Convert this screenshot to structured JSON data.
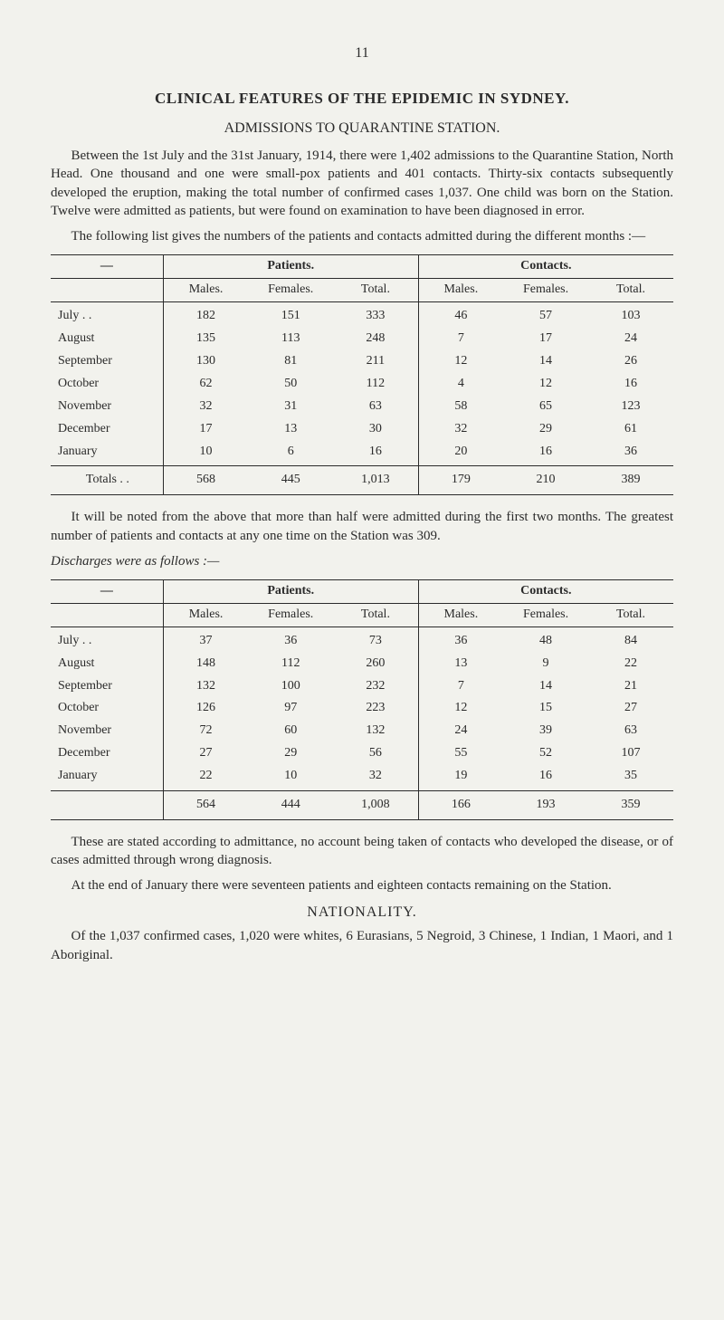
{
  "page_number": "11",
  "title": "CLINICAL FEATURES OF THE EPIDEMIC IN SYDNEY.",
  "subtitle": "ADMISSIONS TO QUARANTINE STATION.",
  "intro_para_1": "Between the 1st July and the 31st January, 1914, there were 1,402 admissions to the Quarantine Station, North Head. One thousand and one were small-pox patients and 401 contacts. Thirty-six contacts subsequently developed the eruption, making the total number of confirmed cases 1,037. One child was born on the Station. Twelve were admitted as patients, but were found on examination to have been diagnosed in error.",
  "intro_para_2": "The following list gives the numbers of the patients and contacts admitted during the different months :—",
  "group_patients": "Patients.",
  "group_contacts": "Contacts.",
  "col_males": "Males.",
  "col_females": "Females.",
  "col_total": "Total.",
  "stub_dash": "—",
  "admissions": {
    "rows": [
      {
        "month": "July . .",
        "pm": "182",
        "pf": "151",
        "pt": "333",
        "cm": "46",
        "cf": "57",
        "ct": "103"
      },
      {
        "month": "August",
        "pm": "135",
        "pf": "113",
        "pt": "248",
        "cm": "7",
        "cf": "17",
        "ct": "24"
      },
      {
        "month": "September",
        "pm": "130",
        "pf": "81",
        "pt": "211",
        "cm": "12",
        "cf": "14",
        "ct": "26"
      },
      {
        "month": "October",
        "pm": "62",
        "pf": "50",
        "pt": "112",
        "cm": "4",
        "cf": "12",
        "ct": "16"
      },
      {
        "month": "November",
        "pm": "32",
        "pf": "31",
        "pt": "63",
        "cm": "58",
        "cf": "65",
        "ct": "123"
      },
      {
        "month": "December",
        "pm": "17",
        "pf": "13",
        "pt": "30",
        "cm": "32",
        "cf": "29",
        "ct": "61"
      },
      {
        "month": "January",
        "pm": "10",
        "pf": "6",
        "pt": "16",
        "cm": "20",
        "cf": "16",
        "ct": "36"
      }
    ],
    "totals_label": "Totals . .",
    "totals": {
      "pm": "568",
      "pf": "445",
      "pt": "1,013",
      "cm": "179",
      "cf": "210",
      "ct": "389"
    }
  },
  "mid_para_1": "It will be noted from the above that more than half were admitted during the first two months. The greatest number of patients and contacts at any one time on the Station was 309.",
  "discharges_caption": "Discharges were as follows :—",
  "discharges": {
    "rows": [
      {
        "month": "July . .",
        "pm": "37",
        "pf": "36",
        "pt": "73",
        "cm": "36",
        "cf": "48",
        "ct": "84"
      },
      {
        "month": "August",
        "pm": "148",
        "pf": "112",
        "pt": "260",
        "cm": "13",
        "cf": "9",
        "ct": "22"
      },
      {
        "month": "September",
        "pm": "132",
        "pf": "100",
        "pt": "232",
        "cm": "7",
        "cf": "14",
        "ct": "21"
      },
      {
        "month": "October",
        "pm": "126",
        "pf": "97",
        "pt": "223",
        "cm": "12",
        "cf": "15",
        "ct": "27"
      },
      {
        "month": "November",
        "pm": "72",
        "pf": "60",
        "pt": "132",
        "cm": "24",
        "cf": "39",
        "ct": "63"
      },
      {
        "month": "December",
        "pm": "27",
        "pf": "29",
        "pt": "56",
        "cm": "55",
        "cf": "52",
        "ct": "107"
      },
      {
        "month": "January",
        "pm": "22",
        "pf": "10",
        "pt": "32",
        "cm": "19",
        "cf": "16",
        "ct": "35"
      }
    ],
    "totals_label": "",
    "totals": {
      "pm": "564",
      "pf": "444",
      "pt": "1,008",
      "cm": "166",
      "cf": "193",
      "ct": "359"
    }
  },
  "closing_para_1": "These are stated according to admittance, no account being taken of contacts who developed the disease, or of cases admitted through wrong diagnosis.",
  "closing_para_2": "At the end of January there were seventeen patients and eighteen contacts remaining on the Station.",
  "nationality_heading": "NATIONALITY.",
  "nationality_para": "Of the 1,037 confirmed cases, 1,020 were whites, 6 Eurasians, 5 Negroid, 3 Chinese, 1 Indian, 1 Maori, and 1 Aboriginal.",
  "small_apostrophe": "’",
  "table_style": {
    "border_color": "#2b2b2b",
    "font_size_pt": 14,
    "background": "#f2f2ed"
  }
}
